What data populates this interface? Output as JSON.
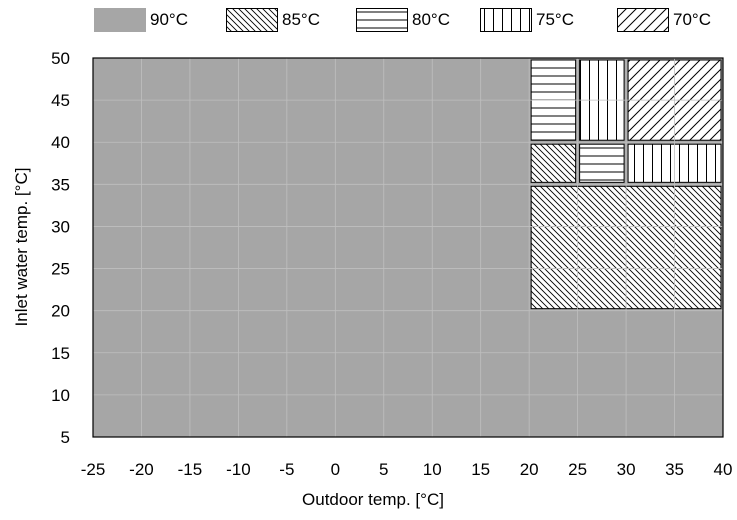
{
  "chart_data": {
    "type": "heatmap",
    "title": "",
    "xlabel": "Outdoor temp. [°C]",
    "ylabel": "Inlet water temp. [°C]",
    "xlim": [
      -25,
      40
    ],
    "ylim": [
      5,
      50
    ],
    "x_ticks": [
      "-25",
      "-20",
      "-15",
      "-10",
      "-5",
      "0",
      "5",
      "10",
      "15",
      "20",
      "25",
      "30",
      "35",
      "40"
    ],
    "y_ticks": [
      "5",
      "10",
      "15",
      "20",
      "25",
      "30",
      "35",
      "40",
      "45",
      "50"
    ],
    "grid": true,
    "legend_position": "top",
    "categories": [
      {
        "label": "90°C",
        "pattern": "solid-gray",
        "color": "#a6a6a6"
      },
      {
        "label": "85°C",
        "pattern": "backward-diagonal"
      },
      {
        "label": "80°C",
        "pattern": "horizontal"
      },
      {
        "label": "75°C",
        "pattern": "vertical"
      },
      {
        "label": "70°C",
        "pattern": "forward-diagonal"
      }
    ],
    "regions": [
      {
        "label": "90°C",
        "x_range": [
          -25,
          40
        ],
        "y_range": [
          5,
          50
        ]
      },
      {
        "label": "85°C",
        "x_range": [
          20,
          40
        ],
        "y_range": [
          20,
          35
        ]
      },
      {
        "label": "85°C",
        "x_range": [
          20,
          25
        ],
        "y_range": [
          35,
          40
        ]
      },
      {
        "label": "80°C",
        "x_range": [
          25,
          30
        ],
        "y_range": [
          35,
          40
        ]
      },
      {
        "label": "75°C",
        "x_range": [
          30,
          40
        ],
        "y_range": [
          35,
          40
        ]
      },
      {
        "label": "80°C",
        "x_range": [
          20,
          25
        ],
        "y_range": [
          40,
          50
        ]
      },
      {
        "label": "75°C",
        "x_range": [
          25,
          30
        ],
        "y_range": [
          40,
          50
        ]
      },
      {
        "label": "70°C",
        "x_range": [
          30,
          40
        ],
        "y_range": [
          40,
          50
        ]
      }
    ]
  }
}
